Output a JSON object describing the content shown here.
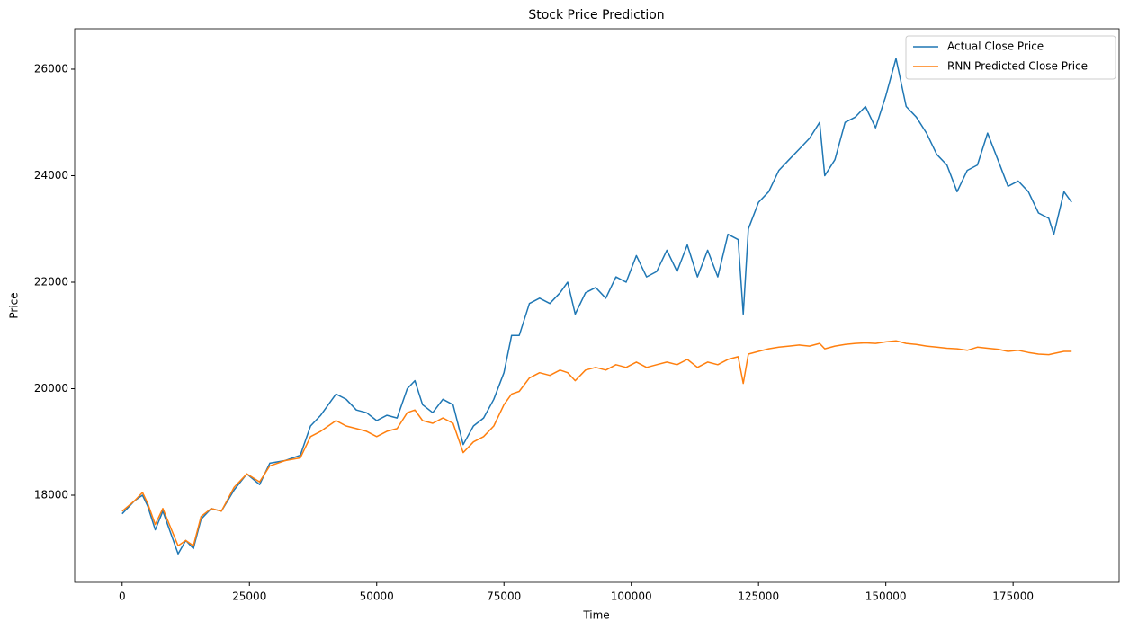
{
  "chart_data": {
    "type": "line",
    "title": "Stock Price Prediction",
    "x_label": "Time",
    "y_label": "Price",
    "x": [
      0,
      2500,
      4000,
      5000,
      6500,
      8000,
      9500,
      11000,
      12500,
      14000,
      15500,
      17500,
      19500,
      22000,
      24500,
      27000,
      29000,
      32000,
      35000,
      37000,
      39000,
      42000,
      44000,
      46000,
      48000,
      50000,
      52000,
      54000,
      56000,
      57500,
      59000,
      61000,
      63000,
      65000,
      67000,
      69000,
      71000,
      73000,
      75000,
      76500,
      78000,
      80000,
      82000,
      84000,
      86000,
      87500,
      89000,
      91000,
      93000,
      95000,
      97000,
      99000,
      101000,
      103000,
      105000,
      107000,
      109000,
      111000,
      113000,
      115000,
      117000,
      119000,
      121000,
      122000,
      123000,
      125000,
      127000,
      129000,
      131000,
      133000,
      135000,
      137000,
      138000,
      140000,
      142000,
      144000,
      146000,
      148000,
      150000,
      152000,
      154000,
      156000,
      158000,
      160000,
      162000,
      164000,
      166000,
      168000,
      170000,
      172000,
      174000,
      176000,
      178000,
      180000,
      182000,
      183000,
      185000,
      186500
    ],
    "series": [
      {
        "name": "Actual Close Price",
        "color": "#1f77b4",
        "values": [
          17650,
          17900,
          18000,
          17800,
          17350,
          17700,
          17300,
          16900,
          17150,
          17000,
          17550,
          17750,
          17700,
          18100,
          18400,
          18200,
          18600,
          18650,
          18750,
          19300,
          19500,
          19900,
          19800,
          19600,
          19550,
          19400,
          19500,
          19450,
          20000,
          20150,
          19700,
          19550,
          19800,
          19700,
          18950,
          19300,
          19450,
          19800,
          20300,
          21000,
          21000,
          21600,
          21700,
          21600,
          21800,
          22000,
          21400,
          21800,
          21900,
          21700,
          22100,
          22000,
          22500,
          22100,
          22200,
          22600,
          22200,
          22700,
          22100,
          22600,
          22100,
          22900,
          22800,
          21400,
          23000,
          23500,
          23700,
          24100,
          24300,
          24500,
          24700,
          25000,
          24000,
          24300,
          25000,
          25100,
          25300,
          24900,
          25500,
          26200,
          25300,
          25100,
          24800,
          24400,
          24200,
          23700,
          24100,
          24200,
          24800,
          24300,
          23800,
          23900,
          23700,
          23300,
          23200,
          22900,
          23700,
          23500
        ]
      },
      {
        "name": "RNN Predicted Close Price",
        "color": "#ff7f0e",
        "values": [
          17700,
          17900,
          18050,
          17850,
          17450,
          17750,
          17400,
          17050,
          17150,
          17050,
          17600,
          17750,
          17700,
          18150,
          18400,
          18250,
          18550,
          18650,
          18700,
          19100,
          19200,
          19400,
          19300,
          19250,
          19200,
          19100,
          19200,
          19250,
          19550,
          19600,
          19400,
          19350,
          19450,
          19350,
          18800,
          19000,
          19100,
          19300,
          19700,
          19900,
          19950,
          20200,
          20300,
          20250,
          20350,
          20300,
          20150,
          20350,
          20400,
          20350,
          20450,
          20400,
          20500,
          20400,
          20450,
          20500,
          20450,
          20550,
          20400,
          20500,
          20450,
          20550,
          20600,
          20100,
          20650,
          20700,
          20750,
          20780,
          20800,
          20820,
          20800,
          20850,
          20750,
          20800,
          20830,
          20850,
          20860,
          20850,
          20880,
          20900,
          20850,
          20830,
          20800,
          20780,
          20760,
          20750,
          20720,
          20780,
          20760,
          20740,
          20700,
          20720,
          20680,
          20650,
          20640,
          20660,
          20700,
          20700
        ]
      }
    ],
    "xlim": [
      -9325,
      195825
    ],
    "ylim": [
      16363,
      26759
    ],
    "xticks": [
      0,
      25000,
      50000,
      75000,
      100000,
      125000,
      150000,
      175000
    ],
    "yticks": [
      18000,
      20000,
      22000,
      24000,
      26000
    ],
    "legend": "upper right"
  }
}
